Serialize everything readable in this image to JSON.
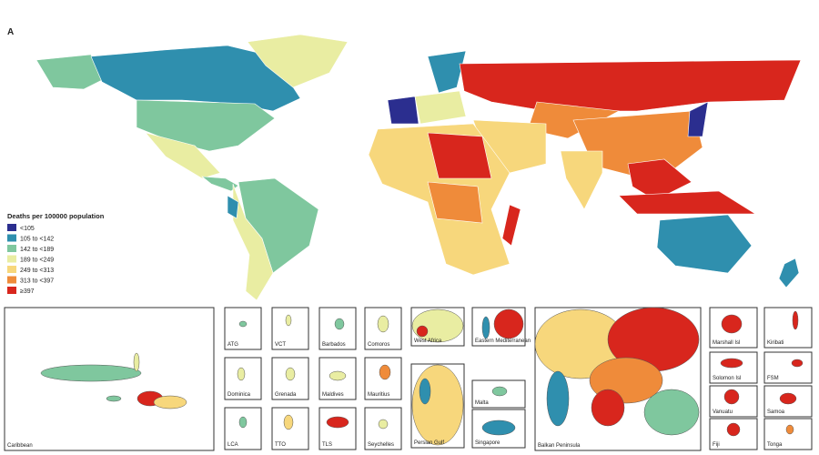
{
  "panel_label": "A",
  "legend": {
    "title": "Deaths per 100000 population",
    "items": [
      {
        "label": "<105",
        "color": "#2b2e8f"
      },
      {
        "label": "105 to <142",
        "color": "#2f8fae"
      },
      {
        "label": "142 to <189",
        "color": "#7fc79e"
      },
      {
        "label": "189 to <249",
        "color": "#e9eda2"
      },
      {
        "label": "249 to <313",
        "color": "#f7d77c"
      },
      {
        "label": "313 to <397",
        "color": "#ef8b3a"
      },
      {
        "label": "≥397",
        "color": "#d8261d"
      }
    ]
  },
  "insets": [
    "Caribbean",
    "ATG",
    "VCT",
    "Barbados",
    "Comoros",
    "West Africa",
    "Eastern Mediterranean",
    "Dominica",
    "Grenada",
    "Maldives",
    "Mauritius",
    "Malta",
    "LCA",
    "TTO",
    "TLS",
    "Seychelles",
    "Persian Gulf",
    "Singapore",
    "Balkan Peninsula",
    "Marshall Isl",
    "Kiribati",
    "Solomon Isl",
    "FSM",
    "Vanuatu",
    "Samoa",
    "Fiji",
    "Tonga"
  ]
}
